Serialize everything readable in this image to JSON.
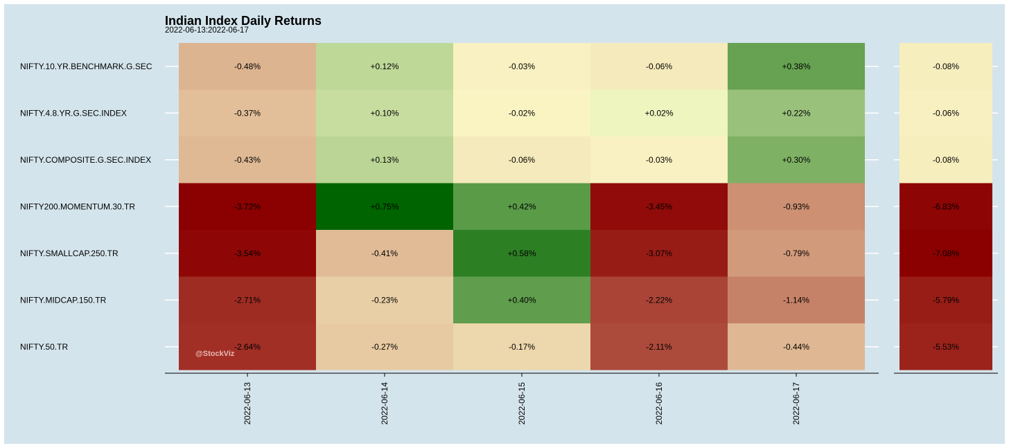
{
  "chart_data": {
    "type": "heatmap",
    "title": "Indian Index Daily Returns",
    "subtitle": "2022-06-13:2022-06-17",
    "watermark": "@StockViz",
    "rows": [
      "NIFTY.10.YR.BENCHMARK.G.SEC",
      "NIFTY.4.8.YR.G.SEC.INDEX",
      "NIFTY.COMPOSITE.G.SEC.INDEX",
      "NIFTY200.MOMENTUM.30.TR",
      "NIFTY.SMALLCAP.250.TR",
      "NIFTY.MIDCAP.150.TR",
      "NIFTY.50.TR"
    ],
    "columns": [
      "2022-06-13",
      "2022-06-14",
      "2022-06-15",
      "2022-06-16",
      "2022-06-17"
    ],
    "values": [
      [
        -0.48,
        0.12,
        -0.03,
        -0.06,
        0.38
      ],
      [
        -0.37,
        0.1,
        -0.02,
        0.02,
        0.22
      ],
      [
        -0.43,
        0.13,
        -0.06,
        -0.03,
        0.3
      ],
      [
        -3.72,
        0.75,
        0.42,
        -3.45,
        -0.93
      ],
      [
        -3.54,
        -0.41,
        0.58,
        -3.07,
        -0.79
      ],
      [
        -2.71,
        -0.23,
        0.4,
        -2.22,
        -1.14
      ],
      [
        -2.64,
        -0.27,
        -0.17,
        -2.11,
        -0.44
      ]
    ],
    "labels": [
      [
        "-0.48%",
        "+0.12%",
        "-0.03%",
        "-0.06%",
        "+0.38%"
      ],
      [
        "-0.37%",
        "+0.10%",
        "-0.02%",
        "+0.02%",
        "+0.22%"
      ],
      [
        "-0.43%",
        "+0.13%",
        "-0.06%",
        "-0.03%",
        "+0.30%"
      ],
      [
        "-3.72%",
        "+0.75%",
        "+0.42%",
        "-3.45%",
        "-0.93%"
      ],
      [
        "-3.54%",
        "-0.41%",
        "+0.58%",
        "-3.07%",
        "-0.79%"
      ],
      [
        "-2.71%",
        "-0.23%",
        "+0.40%",
        "-2.22%",
        "-1.14%"
      ],
      [
        "-2.64%",
        "-0.27%",
        "-0.17%",
        "-2.11%",
        "-0.44%"
      ]
    ],
    "total_values": [
      -0.08,
      -0.06,
      -0.08,
      -6.83,
      -7.08,
      -5.79,
      -5.53
    ],
    "total_labels": [
      "-0.08%",
      "-0.06%",
      "-0.08%",
      "-6.83%",
      "-7.08%",
      "-5.79%",
      "-5.53%"
    ],
    "colors": {
      "background": "#d4e4ec",
      "negative_max": "#8b0000",
      "neutral": "#ffffcc",
      "positive_max": "#006400"
    }
  }
}
